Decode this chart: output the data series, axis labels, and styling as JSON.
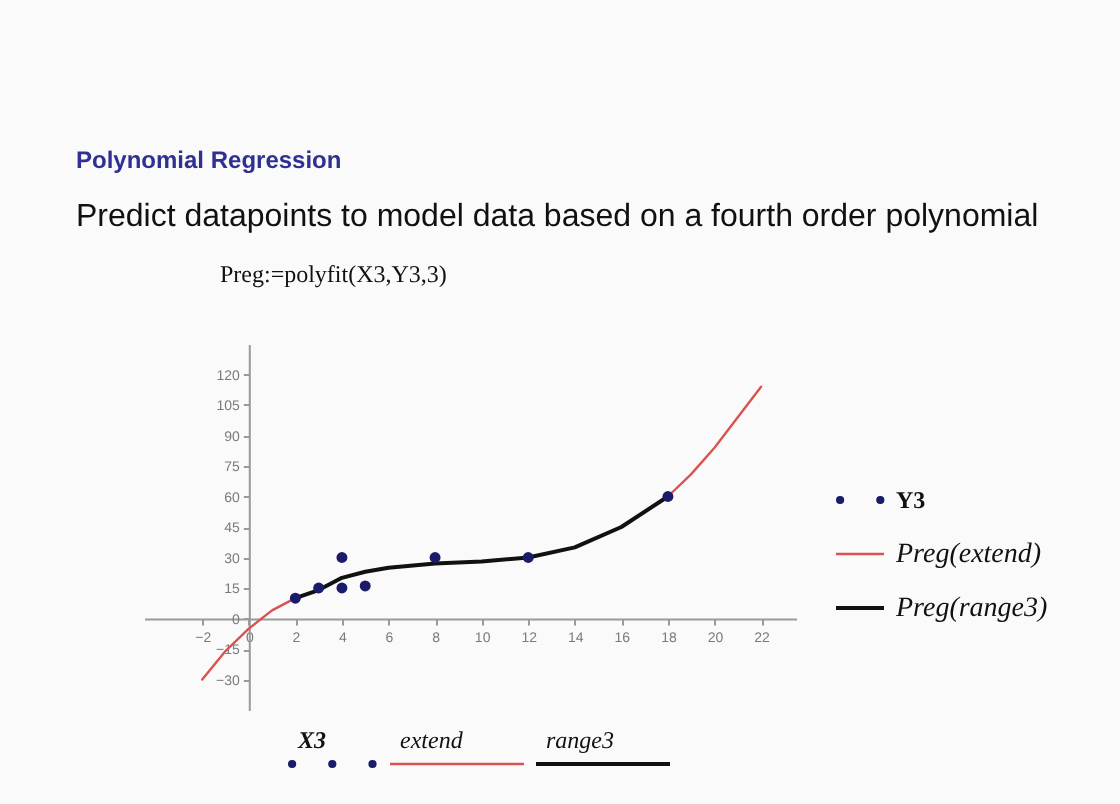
{
  "chart_data": {
    "type": "scatter",
    "title": "Polynomial Regression",
    "subtitle": "Predict datapoints to model data based on a fourth order polynomial",
    "annotations": [
      "Preg:=polyfit(X3,Y3,3)",
      "X3",
      "extend",
      "range3"
    ],
    "xlim": [
      -4.5,
      23.5
    ],
    "xticks": [
      -2,
      0,
      2,
      4,
      6,
      8,
      10,
      12,
      14,
      16,
      18,
      20,
      22
    ],
    "ylim": [
      -45,
      135
    ],
    "yticks": [
      -30,
      -15,
      0,
      15,
      30,
      45,
      60,
      75,
      90,
      105,
      120
    ],
    "grid": false,
    "legend": "right",
    "series": [
      {
        "name": "Y3",
        "marker": "circle",
        "color": "#1b1b6b",
        "x": [
          2,
          3,
          4,
          4,
          5,
          8,
          12,
          18
        ],
        "values": [
          10,
          15,
          30,
          15,
          16,
          30,
          30,
          60
        ]
      },
      {
        "name": "Preg(extend)",
        "type": "line",
        "color": "#d9534f",
        "x": [
          -2,
          -1,
          0,
          1,
          2,
          10,
          18,
          19,
          20,
          21,
          22
        ],
        "values": [
          -30,
          -16,
          -5,
          4,
          10,
          null,
          60,
          71,
          84,
          99,
          114
        ]
      },
      {
        "name": "Preg(range3)",
        "type": "line",
        "color": "#111111",
        "x": [
          2,
          3,
          4,
          5,
          6,
          8,
          10,
          12,
          14,
          16,
          18
        ],
        "values": [
          10,
          14,
          20,
          23,
          25,
          27,
          28,
          30,
          35,
          45,
          60
        ]
      }
    ]
  }
}
